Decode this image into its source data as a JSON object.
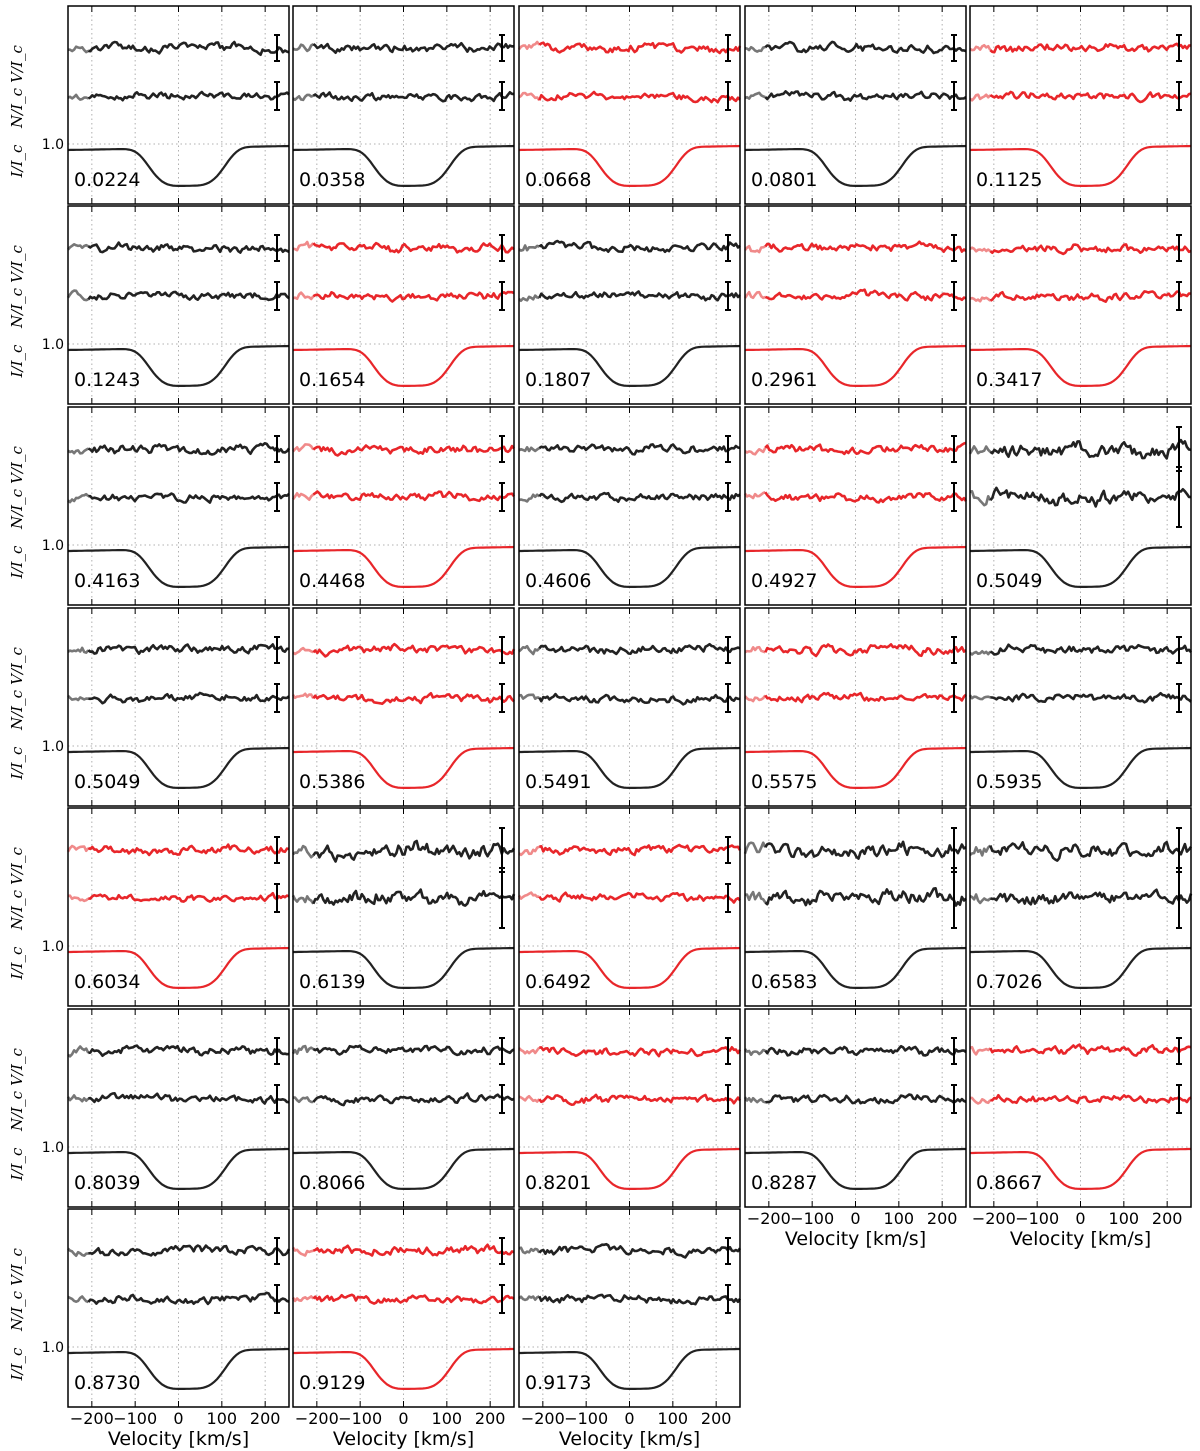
{
  "chart_data": {
    "type": "line",
    "layout": {
      "rows": 7,
      "cols": 5
    },
    "xlabel": "Velocity [km/s]",
    "xlim": [
      -255,
      255
    ],
    "xticks": [
      -200,
      -100,
      0,
      100,
      200
    ],
    "ylabels": {
      "stokes_v": "V/I_c",
      "null": "N/I_c",
      "intensity": "I/I_c"
    },
    "y_reference_tick": "1.0",
    "grid": "dotted vertical",
    "colors": {
      "black_series": "#222222",
      "black_edge": "#777777",
      "red_series": "#e8262a",
      "red_edge": "#f08a8a"
    },
    "panels": [
      {
        "phase": "0.0224",
        "color": "black"
      },
      {
        "phase": "0.0358",
        "color": "black"
      },
      {
        "phase": "0.0668",
        "color": "red"
      },
      {
        "phase": "0.0801",
        "color": "black"
      },
      {
        "phase": "0.1125",
        "color": "red"
      },
      {
        "phase": "0.1243",
        "color": "black"
      },
      {
        "phase": "0.1654",
        "color": "red"
      },
      {
        "phase": "0.1807",
        "color": "black"
      },
      {
        "phase": "0.2961",
        "color": "red"
      },
      {
        "phase": "0.3417",
        "color": "red"
      },
      {
        "phase": "0.4163",
        "color": "black"
      },
      {
        "phase": "0.4468",
        "color": "red"
      },
      {
        "phase": "0.4606",
        "color": "black"
      },
      {
        "phase": "0.4927",
        "color": "red"
      },
      {
        "phase": "0.5049",
        "color": "black",
        "noisy": true
      },
      {
        "phase": "0.5049",
        "color": "black"
      },
      {
        "phase": "0.5386",
        "color": "red"
      },
      {
        "phase": "0.5491",
        "color": "black"
      },
      {
        "phase": "0.5575",
        "color": "red"
      },
      {
        "phase": "0.5935",
        "color": "black"
      },
      {
        "phase": "0.6034",
        "color": "red"
      },
      {
        "phase": "0.6139",
        "color": "black",
        "noisy": true
      },
      {
        "phase": "0.6492",
        "color": "red"
      },
      {
        "phase": "0.6583",
        "color": "black",
        "noisy": true
      },
      {
        "phase": "0.7026",
        "color": "black",
        "noisy": true
      },
      {
        "phase": "0.8039",
        "color": "black"
      },
      {
        "phase": "0.8066",
        "color": "black"
      },
      {
        "phase": "0.8201",
        "color": "red"
      },
      {
        "phase": "0.8287",
        "color": "black"
      },
      {
        "phase": "0.8667",
        "color": "red"
      },
      {
        "phase": "0.8730",
        "color": "black"
      },
      {
        "phase": "0.9129",
        "color": "red"
      },
      {
        "phase": "0.9173",
        "color": "black"
      }
    ]
  }
}
